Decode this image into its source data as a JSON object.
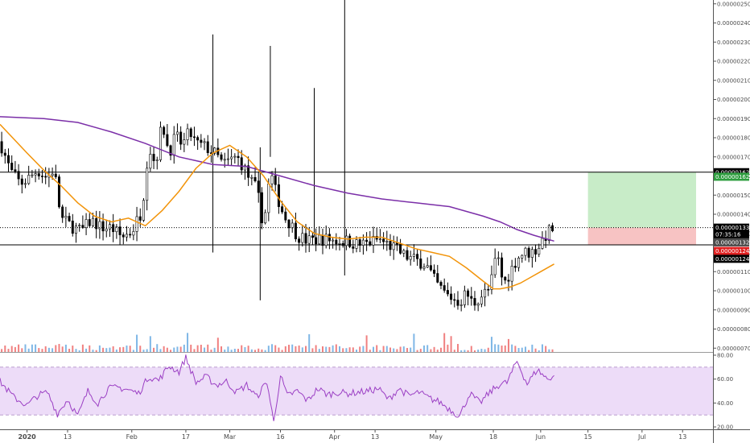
{
  "chart_data": [
    {
      "type": "candlestick",
      "y_ticks": [
        "0.00000250",
        "0.00000240",
        "0.00000230",
        "0.00000220",
        "0.00000210",
        "0.00000200",
        "0.00000190",
        "0.00000180",
        "0.00000170",
        "0.00000160",
        "0.00000150",
        "0.00000140",
        "0.00000130",
        "0.00000120",
        "0.00000110",
        "0.00000100",
        "0.00000090",
        "0.00000080",
        "0.00000070"
      ],
      "y_tick_values": [
        250,
        240,
        230,
        220,
        210,
        200,
        190,
        180,
        170,
        160,
        150,
        140,
        130,
        120,
        110,
        100,
        90,
        80,
        70
      ],
      "ylim": [
        68,
        252
      ],
      "unit_scale": "x 1e-8",
      "x_ticks": [
        {
          "label": "2020",
          "day": 0,
          "bold": true
        },
        {
          "label": "13",
          "day": 12
        },
        {
          "label": "Feb",
          "day": 31
        },
        {
          "label": "17",
          "day": 47
        },
        {
          "label": "Mar",
          "day": 60
        },
        {
          "label": "16",
          "day": 75
        },
        {
          "label": "Apr",
          "day": 91
        },
        {
          "label": "13",
          "day": 103
        },
        {
          "label": "May",
          "day": 121
        },
        {
          "label": "18",
          "day": 138
        },
        {
          "label": "Jun",
          "day": 152
        },
        {
          "label": "15",
          "day": 166
        },
        {
          "label": "Jul",
          "day": 182
        },
        {
          "label": "13",
          "day": 194
        }
      ],
      "xlim_days": [
        -8,
        203
      ],
      "series": [
        {
          "name": "price",
          "kind": "close",
          "days": [
            -8,
            -5,
            -2,
            0,
            3,
            6,
            8,
            10,
            13,
            16,
            19,
            22,
            25,
            28,
            31,
            34,
            36,
            38,
            40,
            42,
            44,
            46,
            48,
            50,
            53,
            56,
            58,
            60,
            62,
            64,
            66,
            68,
            70,
            72,
            74,
            75,
            76,
            78,
            80,
            83,
            86,
            89,
            92,
            95,
            98,
            101,
            104,
            107,
            109,
            112,
            115,
            118,
            121,
            124,
            126,
            128,
            130,
            132,
            134,
            137,
            139,
            141,
            143,
            145,
            147,
            149,
            151,
            153,
            155,
            156
          ],
          "values": [
            178,
            163,
            156,
            158,
            163,
            159,
            164,
            138,
            134,
            131,
            137,
            133,
            133,
            128,
            131,
            142,
            176,
            166,
            188,
            172,
            181,
            176,
            183,
            177,
            175,
            171,
            166,
            168,
            170,
            165,
            158,
            153,
            134,
            162,
            149,
            145,
            139,
            135,
            129,
            126,
            127,
            127,
            126,
            126,
            124,
            125,
            127,
            124,
            122,
            118,
            116,
            114,
            104,
            98,
            96,
            94,
            99,
            93,
            97,
            101,
            120,
            103,
            110,
            117,
            120,
            120,
            122,
            128,
            132,
            133
          ]
        },
        {
          "name": "ma_long",
          "kind": "line",
          "days": [
            -8,
            5,
            15,
            25,
            35,
            45,
            55,
            65,
            75,
            85,
            95,
            105,
            115,
            125,
            135,
            140,
            145,
            150,
            156
          ],
          "values": [
            191,
            190,
            188,
            183,
            177,
            170,
            166,
            165,
            160,
            155,
            151,
            148,
            146,
            144,
            139,
            136,
            132,
            129,
            126
          ]
        },
        {
          "name": "ma_short",
          "kind": "line",
          "days": [
            -8,
            0,
            5,
            10,
            15,
            20,
            25,
            30,
            35,
            40,
            45,
            50,
            55,
            60,
            65,
            70,
            75,
            80,
            85,
            90,
            95,
            100,
            105,
            110,
            115,
            120,
            125,
            130,
            135,
            138,
            140,
            143,
            146,
            149,
            152,
            156
          ],
          "values": [
            187,
            172,
            163,
            155,
            146,
            139,
            136,
            138,
            134,
            142,
            152,
            164,
            172,
            176,
            170,
            160,
            147,
            136,
            130,
            128,
            127,
            128,
            128,
            125,
            122,
            120,
            118,
            112,
            105,
            101,
            101,
            102,
            104,
            107,
            110,
            114
          ]
        }
      ],
      "current_price": "0.00000133",
      "price_tags": [
        {
          "label": "0.00000162",
          "value": 162,
          "bg": "#000000",
          "fg": "#ffffff"
        },
        {
          "label": "0.00000162",
          "value": 159.6,
          "bg": "#2e9e3f",
          "fg": "#ffffff"
        },
        {
          "label": "0.00000133",
          "value": 133,
          "bg": "#000000",
          "fg": "#ffffff"
        },
        {
          "label": "07:35:16",
          "value": 129.5,
          "bg": "#000000",
          "fg": "#ffffff"
        },
        {
          "label": "0.00000132",
          "value": 125.3,
          "bg": "#4a4a4a",
          "fg": "#ffffff"
        },
        {
          "label": "0.00000124",
          "value": 120.8,
          "bg": "#e02020",
          "fg": "#ffffff"
        },
        {
          "label": "0.00000124",
          "value": 116.7,
          "bg": "#000000",
          "fg": "#ffffff"
        }
      ],
      "horizontal_levels": [
        162,
        124
      ],
      "position_box": {
        "entry": 133,
        "target": 162,
        "stop": 124,
        "start_day": 166,
        "end_day": 198
      },
      "colors": {
        "up": "#000000",
        "down": "#000000",
        "ma_long": "#7b2fa8",
        "ma_short": "#f2940a",
        "volume_up": "#7fb7e6",
        "volume_down": "#f08080",
        "target_fill": "#c8ecc8",
        "stop_fill": "#f7c3c3"
      }
    },
    {
      "type": "line",
      "name": "RSI",
      "y_ticks": [
        "80.00",
        "60.00",
        "40.00",
        "20.00"
      ],
      "y_tick_values": [
        80,
        60,
        40,
        20
      ],
      "ylim": [
        18,
        82
      ],
      "bands": [
        70,
        30
      ],
      "days": [
        -8,
        -4,
        0,
        3,
        6,
        9,
        12,
        15,
        18,
        21,
        24,
        27,
        30,
        33,
        36,
        39,
        42,
        45,
        47,
        50,
        53,
        56,
        59,
        62,
        65,
        68,
        71,
        73,
        75,
        77,
        80,
        83,
        86,
        89,
        92,
        95,
        98,
        101,
        104,
        107,
        110,
        113,
        116,
        119,
        122,
        125,
        128,
        131,
        134,
        137,
        140,
        142,
        145,
        148,
        151,
        154,
        156
      ],
      "values": [
        58,
        45,
        38,
        46,
        49,
        31,
        43,
        29,
        50,
        40,
        52,
        53,
        51,
        48,
        62,
        59,
        71,
        66,
        78,
        57,
        62,
        55,
        58,
        49,
        55,
        45,
        58,
        24,
        63,
        46,
        50,
        42,
        52,
        47,
        49,
        48,
        49,
        50,
        52,
        43,
        52,
        46,
        49,
        44,
        41,
        35,
        29,
        48,
        40,
        49,
        56,
        57,
        75,
        56,
        68,
        60,
        63
      ],
      "color": "#9b3fc4",
      "band_fill": "#eddcf8"
    }
  ]
}
